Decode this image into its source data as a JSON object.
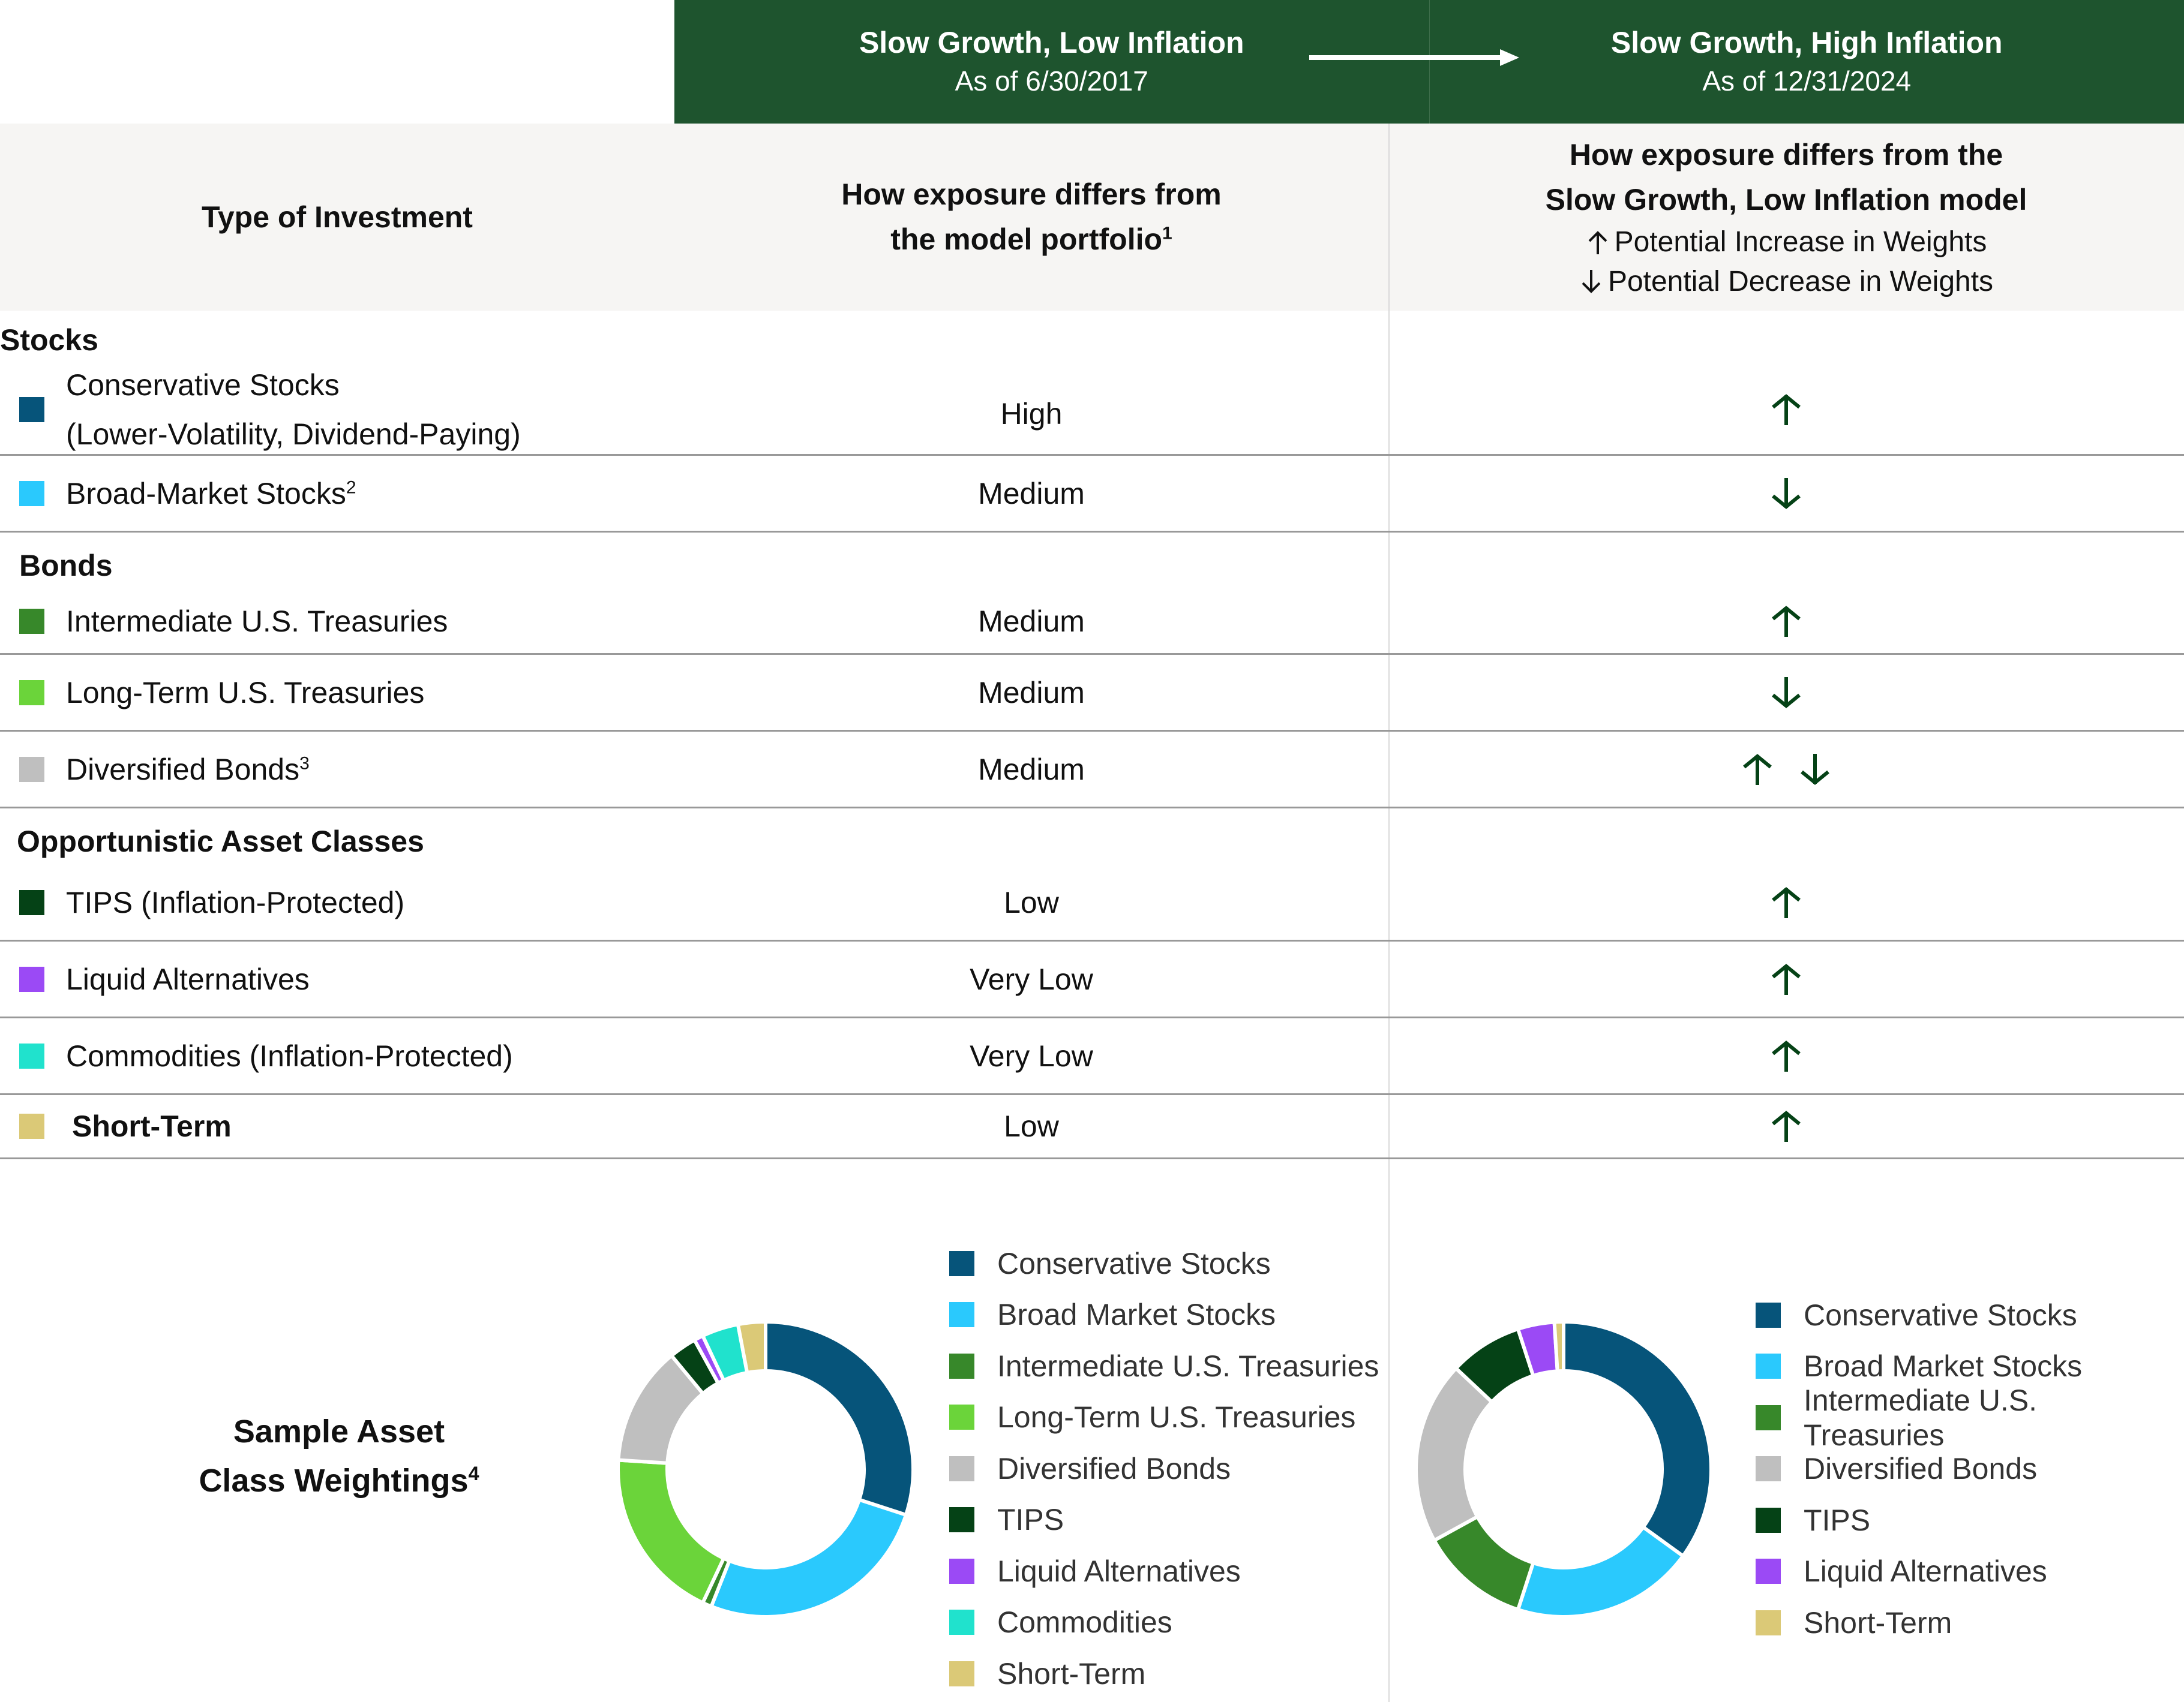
{
  "colors": {
    "header_green": "#1e542e",
    "arrow_green": "#054216",
    "header_bg": "#f6f5f3",
    "divider": "#999999"
  },
  "scenarios": {
    "from": {
      "title": "Slow Growth, Low Inflation",
      "date": "As of 6/30/2017"
    },
    "to": {
      "title": "Slow Growth, High Inflation",
      "date": "As of 12/31/2024"
    },
    "transition_icon": "right-arrow-icon"
  },
  "column_headers": {
    "type": "Type of Investment",
    "exposure_line1": "How exposure differs from",
    "exposure_line2": "the model portfolio",
    "exposure_sup": "1",
    "change_line1": "How exposure differs from the",
    "change_line2": "Slow Growth, Low Inflation model",
    "legend_up": "Potential Increase in Weights",
    "legend_down": "Potential Decrease in Weights"
  },
  "groups": [
    {
      "label": "Stocks",
      "rows": [
        {
          "label": "Conservative Stocks",
          "label2": "(Lower-Volatility, Dividend-Paying)",
          "sup": "",
          "color": "#06547a",
          "exposure": "High",
          "change": [
            "up"
          ]
        },
        {
          "label": "Broad-Market Stocks",
          "label2": "",
          "sup": "2",
          "color": "#2ac9fd",
          "exposure": "Medium",
          "change": [
            "down"
          ]
        }
      ]
    },
    {
      "label": "Bonds",
      "rows": [
        {
          "label": "Intermediate U.S. Treasuries",
          "label2": "",
          "sup": "",
          "color": "#37882a",
          "exposure": "Medium",
          "change": [
            "up"
          ]
        },
        {
          "label": "Long-Term U.S. Treasuries",
          "label2": "",
          "sup": "",
          "color": "#6bd43a",
          "exposure": "Medium",
          "change": [
            "down"
          ]
        },
        {
          "label": "Diversified Bonds",
          "label2": "",
          "sup": "3",
          "color": "#bfbfbf",
          "exposure": "Medium",
          "change": [
            "up",
            "down"
          ]
        }
      ]
    },
    {
      "label": "Opportunistic Asset Classes",
      "rows": [
        {
          "label": "TIPS (Inflation-Protected)",
          "label2": "",
          "sup": "",
          "color": "#054216",
          "exposure": "Low",
          "change": [
            "up"
          ]
        },
        {
          "label": "Liquid Alternatives",
          "label2": "",
          "sup": "",
          "color": "#9b4af5",
          "exposure": "Very Low",
          "change": [
            "up"
          ]
        },
        {
          "label": "Commodities (Inflation-Protected)",
          "label2": "",
          "sup": "",
          "color": "#20e2cd",
          "exposure": "Very Low",
          "change": [
            "up"
          ]
        },
        {
          "label": "Short-Term",
          "label2": "",
          "sup": "",
          "color": "#dbc977",
          "exposure": "Low",
          "change": [
            "up"
          ],
          "bold": true
        }
      ]
    }
  ],
  "sample_weightings": {
    "label_line1": "Sample Asset",
    "label_line2": "Class Weightings",
    "label_sup": "4"
  },
  "chart_data": [
    {
      "type": "pie",
      "title": "Slow Growth, Low Inflation — As of 6/30/2017 (donut)",
      "categories": [
        "Conservative Stocks",
        "Broad Market Stocks",
        "Intermediate U.S. Treasuries",
        "Long-Term U.S. Treasuries",
        "Diversified Bonds",
        "TIPS",
        "Liquid Alternatives",
        "Commodities",
        "Short-Term"
      ],
      "values": [
        30,
        26,
        1,
        19,
        13,
        3,
        1,
        4,
        3
      ],
      "colors": [
        "#06547a",
        "#2ac9fd",
        "#37882a",
        "#6bd43a",
        "#bfbfbf",
        "#054216",
        "#9b4af5",
        "#20e2cd",
        "#dbc977"
      ],
      "legend_position": "right",
      "units": "% (estimated)"
    },
    {
      "type": "pie",
      "title": "Slow Growth, High Inflation — As of 12/31/2024 (donut)",
      "categories": [
        "Conservative Stocks",
        "Broad Market Stocks",
        "Intermediate U.S. Treasuries",
        "Diversified Bonds",
        "TIPS",
        "Liquid Alternatives",
        "Short-Term"
      ],
      "values": [
        35,
        20,
        12,
        20,
        8,
        4,
        1
      ],
      "colors": [
        "#06547a",
        "#2ac9fd",
        "#37882a",
        "#bfbfbf",
        "#054216",
        "#9b4af5",
        "#dbc977"
      ],
      "legend_position": "right",
      "units": "% (estimated)"
    }
  ]
}
